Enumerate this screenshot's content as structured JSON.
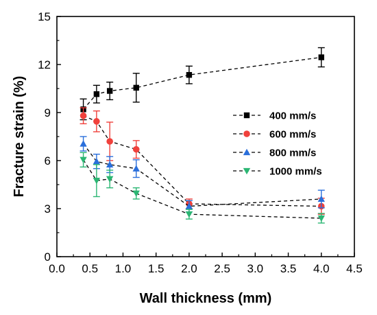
{
  "chart_data": {
    "type": "line",
    "xlabel": "Wall thickness (mm)",
    "ylabel": "Fracture strain (%)",
    "xlim": [
      0.0,
      4.5
    ],
    "ylim": [
      0,
      15
    ],
    "xticks": [
      "0.0",
      "0.5",
      "1.0",
      "1.5",
      "2.0",
      "2.5",
      "3.0",
      "3.5",
      "4.0",
      "4.5"
    ],
    "yticks": [
      "0",
      "3",
      "6",
      "9",
      "12",
      "15"
    ],
    "grid": false,
    "legend_position": "right",
    "series": [
      {
        "name": "400 mm/s",
        "color": "#000000",
        "marker": "square",
        "x": [
          0.4,
          0.6,
          0.8,
          1.2,
          2.0,
          4.0
        ],
        "y": [
          9.2,
          10.15,
          10.35,
          10.55,
          11.35,
          12.45
        ],
        "err": [
          0.65,
          0.55,
          0.55,
          0.9,
          0.55,
          0.6
        ]
      },
      {
        "name": "600 mm/s",
        "color": "#f0413c",
        "marker": "circle",
        "x": [
          0.4,
          0.6,
          0.8,
          1.2,
          2.0,
          4.0
        ],
        "y": [
          8.8,
          8.45,
          7.2,
          6.7,
          3.3,
          3.15
        ],
        "err": [
          0.5,
          0.65,
          1.2,
          0.55,
          0.3,
          0.5
        ]
      },
      {
        "name": "800 mm/s",
        "color": "#2a6fdb",
        "marker": "triangle-up",
        "x": [
          0.4,
          0.6,
          0.8,
          1.2,
          2.0,
          4.0
        ],
        "y": [
          7.05,
          5.95,
          5.75,
          5.5,
          3.15,
          3.6
        ],
        "err": [
          0.45,
          0.45,
          0.5,
          0.55,
          0.35,
          0.55
        ]
      },
      {
        "name": "1000 mm/s",
        "color": "#2bb673",
        "marker": "triangle-down",
        "x": [
          0.4,
          0.6,
          0.8,
          1.2,
          2.0,
          4.0
        ],
        "y": [
          6.05,
          4.75,
          4.85,
          3.95,
          2.65,
          2.4
        ],
        "err": [
          0.45,
          1.0,
          0.55,
          0.35,
          0.3,
          0.3
        ]
      }
    ]
  }
}
